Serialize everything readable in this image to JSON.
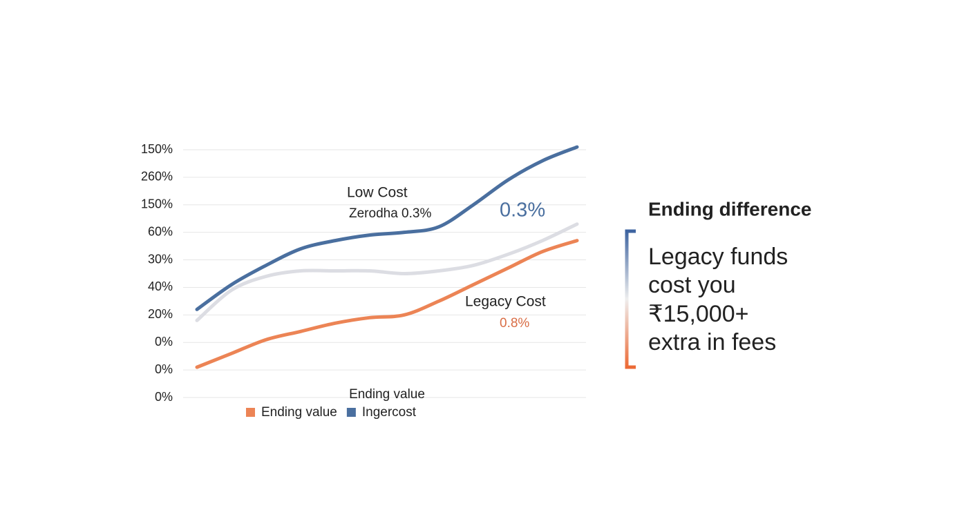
{
  "chart_data": {
    "type": "line",
    "y_labels": [
      "150%",
      "260%",
      "150%",
      "60%",
      "30%",
      "40%",
      "20%",
      "0%",
      "0%",
      "0%"
    ],
    "ylim": [
      0,
      9
    ],
    "grid": true,
    "legend_title": "Ending value",
    "series": [
      {
        "name": "Ingercost",
        "color": "#4a6f9f",
        "values": [
          3.2,
          4.1,
          4.8,
          5.4,
          5.7,
          5.9,
          6.0,
          6.2,
          7.0,
          7.9,
          8.6,
          9.1
        ]
      },
      {
        "color": "#dcdde3",
        "values": [
          2.8,
          3.9,
          4.4,
          4.6,
          4.6,
          4.6,
          4.5,
          4.6,
          4.8,
          5.2,
          5.7,
          6.3
        ]
      },
      {
        "name": "Ending value",
        "color": "#ec8455",
        "values": [
          1.1,
          1.6,
          2.1,
          2.4,
          2.7,
          2.9,
          3.0,
          3.5,
          4.1,
          4.7,
          5.3,
          5.7
        ]
      }
    ],
    "annotations": [
      "Low Cost",
      "Zerodha 0.3%",
      "0.3%",
      "Legacy Cost",
      "0.8%"
    ]
  },
  "side_panel": {
    "title": "Ending difference",
    "lines": [
      "Legacy funds",
      "cost you",
      "₹15,000+",
      "extra in fees"
    ]
  }
}
